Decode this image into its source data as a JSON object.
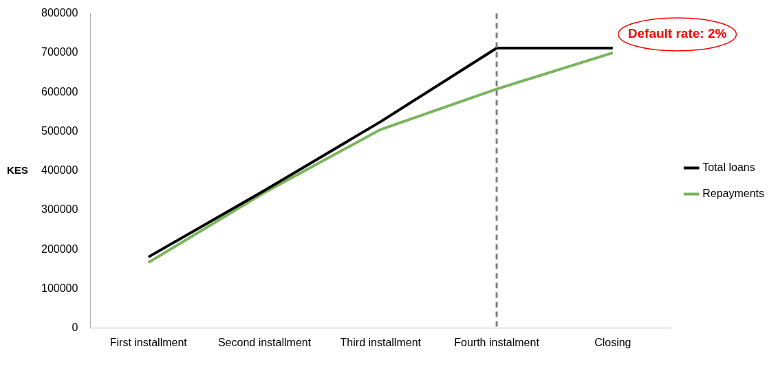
{
  "chart_data": {
    "type": "line",
    "ylabel": "KES",
    "categories": [
      "First installment",
      "Second installment",
      "Third installment",
      "Fourth instalment",
      "Closing"
    ],
    "series": [
      {
        "name": "Total loans",
        "color": "#000000",
        "values": [
          181000,
          350000,
          525000,
          712000,
          712000
        ]
      },
      {
        "name": "Repayments",
        "color": "#7ab55c",
        "values": [
          167000,
          345000,
          505000,
          608000,
          700000
        ]
      }
    ],
    "ylim": [
      0,
      800000
    ],
    "yticks": [
      0,
      100000,
      200000,
      300000,
      400000,
      500000,
      600000,
      700000,
      800000
    ],
    "grid": false,
    "legend": "right",
    "marker": "none",
    "line_style": "solid",
    "ref_lines": [
      {
        "axis": "x",
        "value": "Fourth instalment",
        "color": "#7f7f7f",
        "line_style": "dashed"
      }
    ],
    "annotations": [
      {
        "text": "Default rate: 2%",
        "x": "Closing",
        "y": 712000
      }
    ]
  }
}
